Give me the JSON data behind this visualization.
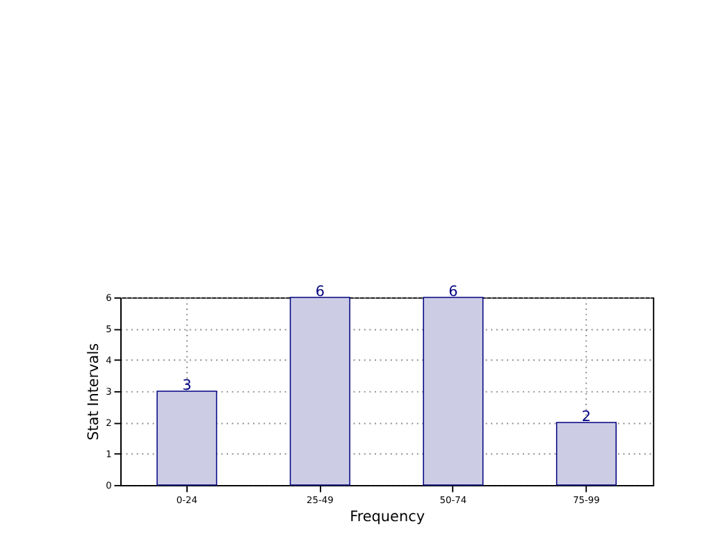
{
  "chart_data": {
    "type": "bar",
    "xlabel": "Frequency",
    "ylabel": "Stat Intervals",
    "categories": [
      "0-24",
      "25-49",
      "50-74",
      "75-99"
    ],
    "values": [
      3,
      6,
      6,
      2
    ],
    "color": "#cccce5",
    "ylim": [
      0,
      6
    ],
    "yticks": [
      0,
      1,
      2,
      3,
      4,
      5,
      6
    ],
    "grid": true,
    "data_labels": true
  }
}
